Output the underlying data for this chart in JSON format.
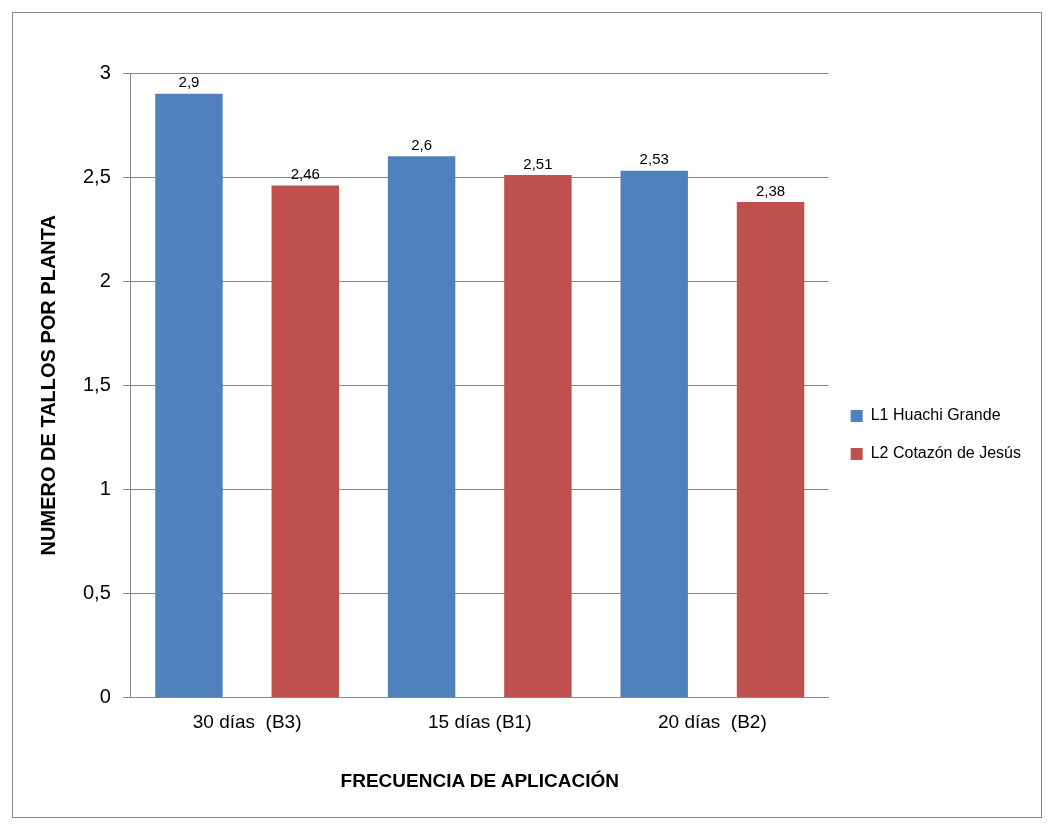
{
  "chart_data": {
    "type": "bar",
    "xlabel": "FRECUENCIA DE APLICACIÓN",
    "ylabel": "NUMERO DE TALLOS POR PLANTA",
    "categories": [
      "30 días  (B3)",
      "15 días (B1)",
      "20 días  (B2)"
    ],
    "series": [
      {
        "name": "L1 Huachi Grande",
        "color": "#4f81bd",
        "values": [
          2.9,
          2.6,
          2.53
        ],
        "value_labels": [
          "2,9",
          "2,6",
          "2,53"
        ]
      },
      {
        "name": "L2 Cotazón de Jesús",
        "color": "#c0504d",
        "values": [
          2.46,
          2.51,
          2.38
        ],
        "value_labels": [
          "2,46",
          "2,51",
          "2,38"
        ]
      }
    ],
    "ylim": [
      0,
      3
    ],
    "yticks": [
      0,
      {
        "value": 0.5,
        "label": "0,5"
      },
      1,
      {
        "value": 1.5,
        "label": "1,5"
      },
      2,
      {
        "value": 2.5,
        "label": "2,5"
      },
      3
    ],
    "grid": "y",
    "legend": "right"
  }
}
